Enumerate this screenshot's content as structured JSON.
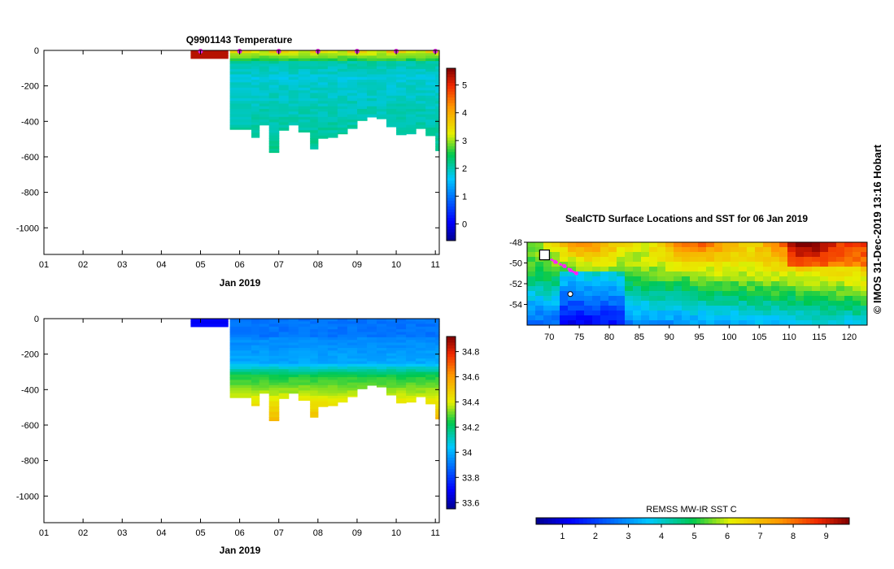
{
  "chart_data": [
    {
      "type": "heatmap",
      "title": "Q9901143  Temperature",
      "xlabel": "Jan 2019",
      "ylabel": "",
      "x_ticks": [
        "01",
        "02",
        "03",
        "04",
        "05",
        "06",
        "07",
        "08",
        "09",
        "10",
        "11"
      ],
      "x_range_days": [
        1,
        11.1
      ],
      "y_ticks": [
        0,
        -200,
        -400,
        -600,
        -800,
        -1000
      ],
      "ylim": [
        -1150,
        0
      ],
      "colorbar": {
        "ticks": [
          0,
          1,
          2,
          3,
          4,
          5
        ],
        "range": [
          -0.6,
          5.6
        ]
      },
      "profile_markers_day": [
        5.0,
        6.0,
        7.0,
        8.0,
        9.0,
        10.0,
        11.0
      ],
      "profiles": [
        {
          "start": 4.75,
          "end": 5.7,
          "depth": 45,
          "kind": "surface"
        },
        {
          "start": 5.75,
          "end": 6.3,
          "depth": 445
        },
        {
          "start": 6.3,
          "end": 6.5,
          "depth": 490
        },
        {
          "start": 6.5,
          "end": 6.75,
          "depth": 420
        },
        {
          "start": 6.75,
          "end": 7.0,
          "depth": 575
        },
        {
          "start": 7.0,
          "end": 7.25,
          "depth": 450
        },
        {
          "start": 7.25,
          "end": 7.5,
          "depth": 420
        },
        {
          "start": 7.5,
          "end": 7.8,
          "depth": 460
        },
        {
          "start": 7.8,
          "end": 8.0,
          "depth": 555
        },
        {
          "start": 8.0,
          "end": 8.25,
          "depth": 495
        },
        {
          "start": 8.25,
          "end": 8.5,
          "depth": 490
        },
        {
          "start": 8.5,
          "end": 8.75,
          "depth": 470
        },
        {
          "start": 8.75,
          "end": 9.0,
          "depth": 440
        },
        {
          "start": 9.0,
          "end": 9.25,
          "depth": 395
        },
        {
          "start": 9.25,
          "end": 9.5,
          "depth": 375
        },
        {
          "start": 9.5,
          "end": 9.75,
          "depth": 385
        },
        {
          "start": 9.75,
          "end": 10.0,
          "depth": 430
        },
        {
          "start": 10.0,
          "end": 10.25,
          "depth": 475
        },
        {
          "start": 10.25,
          "end": 10.5,
          "depth": 470
        },
        {
          "start": 10.5,
          "end": 10.75,
          "depth": 440
        },
        {
          "start": 10.75,
          "end": 11.0,
          "depth": 480
        },
        {
          "start": 11.0,
          "end": 11.1,
          "depth": 565
        }
      ]
    },
    {
      "type": "heatmap",
      "title": "",
      "xlabel": "Jan 2019",
      "ylabel": "",
      "x_ticks": [
        "01",
        "02",
        "03",
        "04",
        "05",
        "06",
        "07",
        "08",
        "09",
        "10",
        "11"
      ],
      "x_range_days": [
        1,
        11.1
      ],
      "y_ticks": [
        0,
        -200,
        -400,
        -600,
        -800,
        -1000
      ],
      "ylim": [
        -1150,
        0
      ],
      "colorbar": {
        "ticks": [
          33.6,
          33.8,
          34,
          34.2,
          34.4,
          34.6,
          34.8
        ],
        "tick_labels": [
          "33.6",
          "33.8",
          "34",
          "34.2",
          "34.4",
          "34.6",
          "34.8"
        ],
        "range": [
          33.55,
          34.92
        ]
      },
      "profiles": "same profile columns as the temperature section"
    },
    {
      "type": "heatmap",
      "title": "SealCTD Surface Locations and SST for 06 Jan 2019",
      "xlabel": "",
      "ylabel": "",
      "x_ticks": [
        70,
        75,
        80,
        85,
        90,
        95,
        100,
        105,
        110,
        115,
        120
      ],
      "x_range": [
        66.3,
        123
      ],
      "y_ticks": [
        -48,
        -50,
        -52,
        -54
      ],
      "y_range": [
        -56,
        -48
      ],
      "colorbar_label": "REMSS MW-IR SST C",
      "colorbar_ticks": [
        1,
        2,
        3,
        4,
        5,
        6,
        7,
        8,
        9
      ],
      "colorbar_range": [
        0.2,
        9.7
      ],
      "track_points": [
        [
          69.5,
          -49.4
        ],
        [
          71,
          -49.9
        ],
        [
          72.5,
          -50.3
        ],
        [
          73.5,
          -50.7
        ],
        [
          74.5,
          -51.0
        ]
      ],
      "other_location": [
        73.5,
        -53.0
      ]
    }
  ],
  "credit": "© IMOS 31-Dec-2019 13:16 Hobart",
  "colors": {
    "marker": "#dd22dd",
    "track": "#ff22ff"
  }
}
